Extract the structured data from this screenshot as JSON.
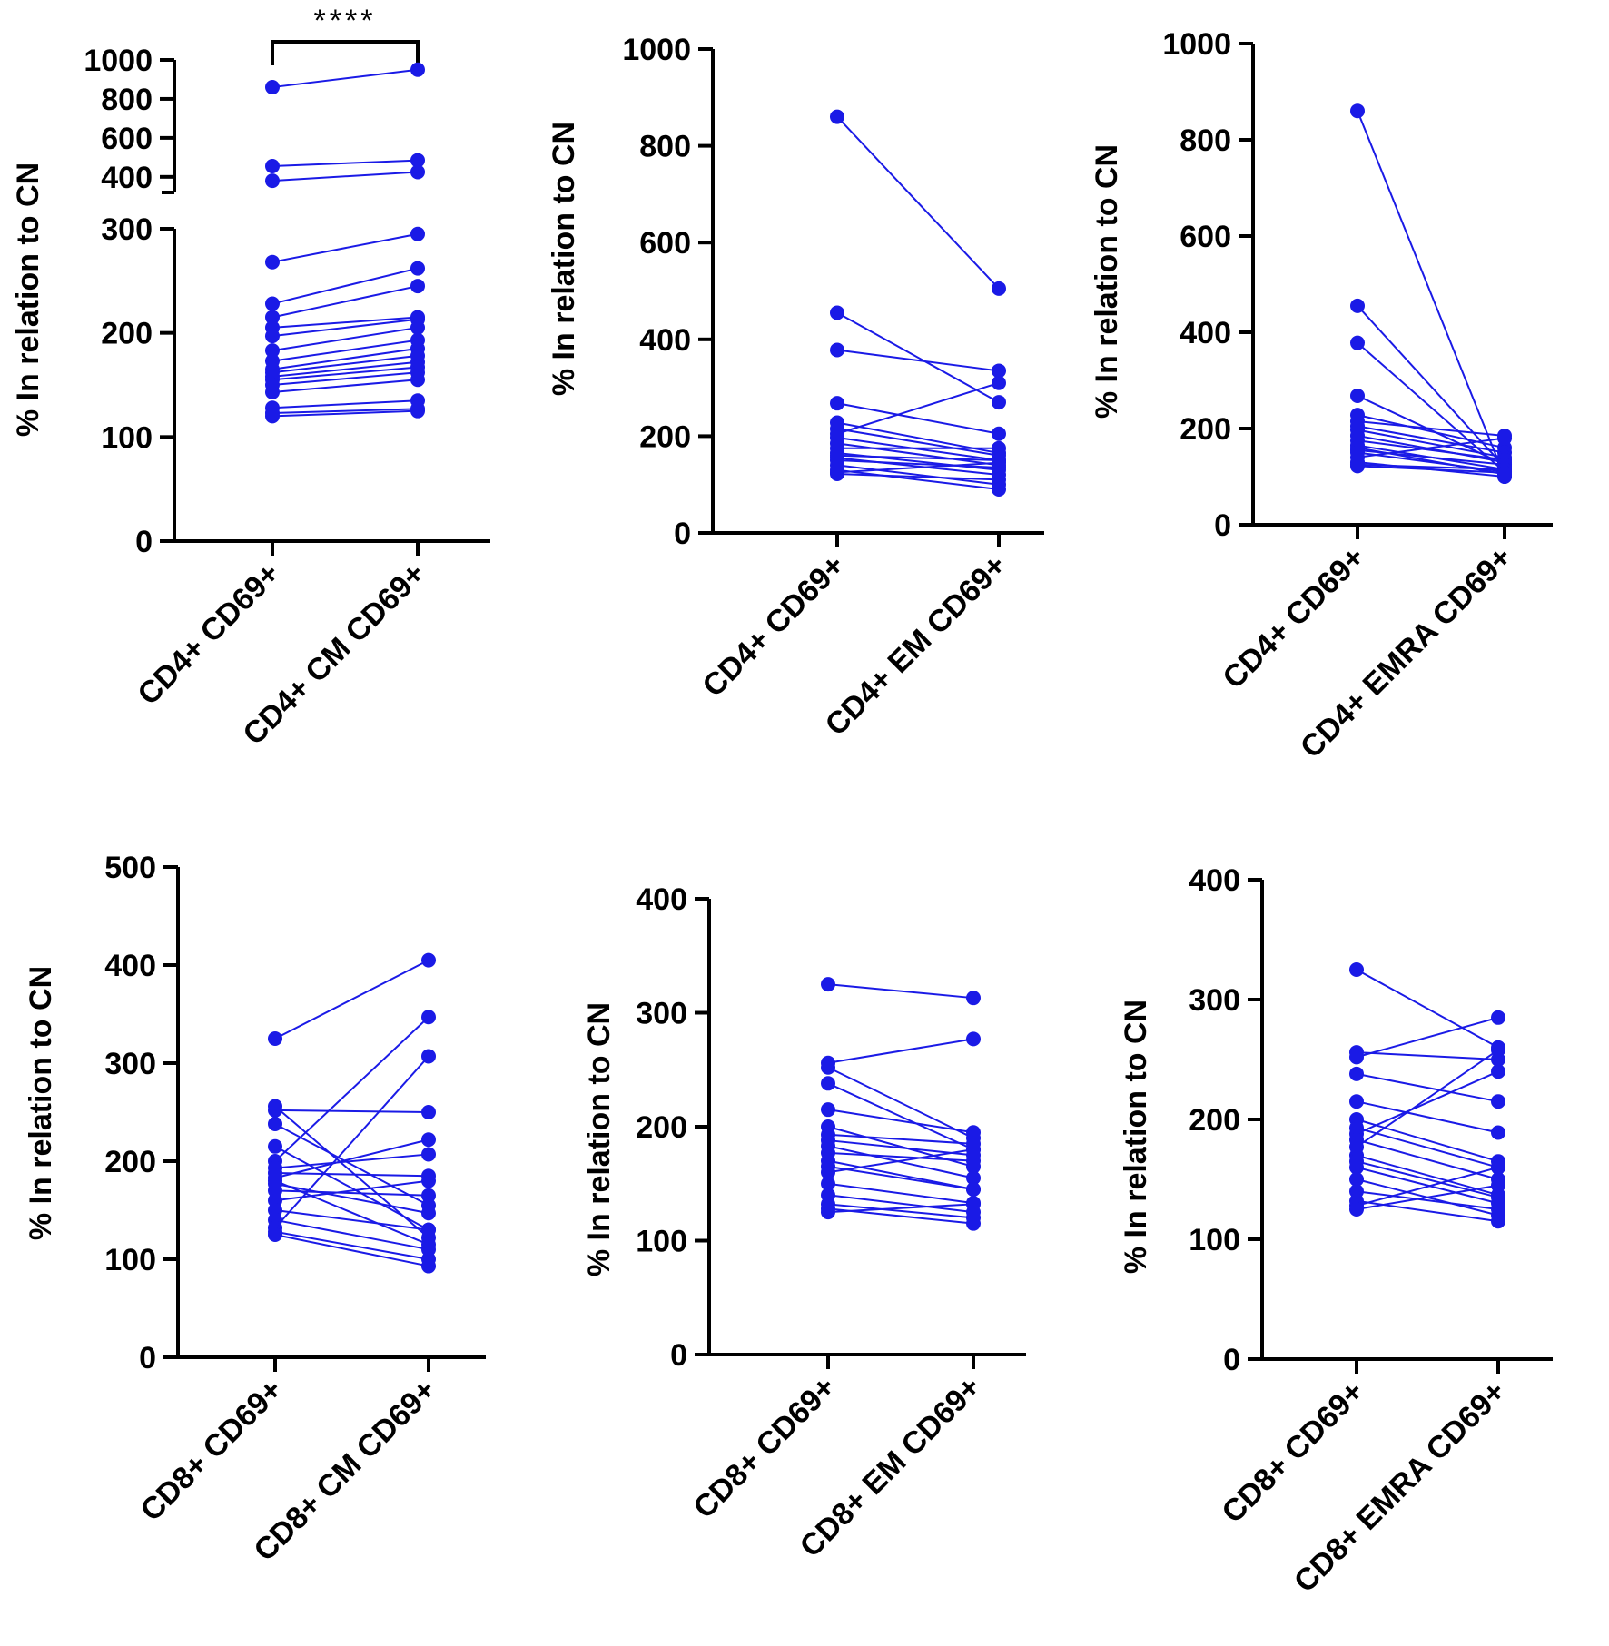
{
  "colors": {
    "series": "#1a1ae6",
    "axis": "#000000"
  },
  "chart_data": [
    {
      "type": "paired-line",
      "title": "",
      "ylabel": "% In relation to CN",
      "categories": [
        "CD4+ CD69+",
        "CD4+ CM CD69+"
      ],
      "ylim": [
        0,
        1000
      ],
      "yaxis_break": {
        "lower_max": 300,
        "upper_min": 320,
        "upper_max": 1000
      },
      "yticks": [
        0,
        100,
        200,
        300,
        400,
        600,
        800,
        1000
      ],
      "significance": "****",
      "pairs": [
        [
          860,
          950
        ],
        [
          455,
          485
        ],
        [
          380,
          425
        ],
        [
          268,
          295
        ],
        [
          228,
          262
        ],
        [
          215,
          245
        ],
        [
          205,
          215
        ],
        [
          197,
          213
        ],
        [
          183,
          205
        ],
        [
          173,
          193
        ],
        [
          165,
          185
        ],
        [
          162,
          178
        ],
        [
          158,
          172
        ],
        [
          155,
          167
        ],
        [
          150,
          162
        ],
        [
          143,
          155
        ],
        [
          128,
          135
        ],
        [
          123,
          127
        ],
        [
          120,
          125
        ]
      ]
    },
    {
      "type": "paired-line",
      "title": "",
      "ylabel": "% In relation to CN",
      "categories": [
        "CD4+ CD69+",
        "CD4+ EM CD69+"
      ],
      "ylim": [
        0,
        1000
      ],
      "yticks": [
        0,
        200,
        400,
        600,
        800,
        1000
      ],
      "pairs": [
        [
          860,
          505
        ],
        [
          455,
          270
        ],
        [
          378,
          335
        ],
        [
          268,
          205
        ],
        [
          228,
          165
        ],
        [
          215,
          160
        ],
        [
          205,
          310
        ],
        [
          197,
          150
        ],
        [
          185,
          140
        ],
        [
          175,
          175
        ],
        [
          165,
          130
        ],
        [
          160,
          150
        ],
        [
          155,
          120
        ],
        [
          150,
          135
        ],
        [
          140,
          100
        ],
        [
          130,
          90
        ],
        [
          125,
          145
        ],
        [
          122,
          110
        ]
      ]
    },
    {
      "type": "paired-line",
      "title": "",
      "ylabel": "% In relation to CN",
      "categories": [
        "CD4+ CD69+",
        "CD4+ EMRA CD69+"
      ],
      "ylim": [
        0,
        1000
      ],
      "yticks": [
        0,
        200,
        400,
        600,
        800,
        1000
      ],
      "pairs": [
        [
          860,
          100
        ],
        [
          455,
          120
        ],
        [
          378,
          110
        ],
        [
          268,
          125
        ],
        [
          228,
          160
        ],
        [
          215,
          185
        ],
        [
          205,
          150
        ],
        [
          197,
          140
        ],
        [
          185,
          130
        ],
        [
          175,
          135
        ],
        [
          165,
          115
        ],
        [
          160,
          105
        ],
        [
          155,
          125
        ],
        [
          150,
          110
        ],
        [
          140,
          180
        ],
        [
          130,
          100
        ],
        [
          125,
          115
        ],
        [
          122,
          108
        ]
      ]
    },
    {
      "type": "paired-line",
      "title": "",
      "ylabel": "% In relation to CN",
      "categories": [
        "CD8+ CD69+",
        "CD8+ CM CD69+"
      ],
      "ylim": [
        0,
        500
      ],
      "yticks": [
        0,
        100,
        200,
        300,
        400,
        500
      ],
      "pairs": [
        [
          325,
          405
        ],
        [
          256,
          122
        ],
        [
          252,
          250
        ],
        [
          238,
          155
        ],
        [
          215,
          130
        ],
        [
          200,
          347
        ],
        [
          193,
          207
        ],
        [
          188,
          185
        ],
        [
          183,
          222
        ],
        [
          177,
          147
        ],
        [
          170,
          165
        ],
        [
          160,
          180
        ],
        [
          150,
          130
        ],
        [
          140,
          110
        ],
        [
          132,
          307
        ],
        [
          128,
          100
        ],
        [
          125,
          93
        ],
        [
          180,
          115
        ]
      ]
    },
    {
      "type": "paired-line",
      "title": "",
      "ylabel": "% In relation to CN",
      "categories": [
        "CD8+ CD69+",
        "CD8+ EM CD69+"
      ],
      "ylim": [
        0,
        400
      ],
      "yticks": [
        0,
        100,
        200,
        300,
        400
      ],
      "pairs": [
        [
          325,
          313
        ],
        [
          256,
          277
        ],
        [
          252,
          190
        ],
        [
          238,
          180
        ],
        [
          215,
          195
        ],
        [
          200,
          165
        ],
        [
          193,
          185
        ],
        [
          188,
          175
        ],
        [
          183,
          155
        ],
        [
          177,
          170
        ],
        [
          170,
          145
        ],
        [
          160,
          180
        ],
        [
          150,
          133
        ],
        [
          140,
          125
        ],
        [
          132,
          120
        ],
        [
          128,
          115
        ],
        [
          125,
          132
        ],
        [
          165,
          145
        ]
      ]
    },
    {
      "type": "paired-line",
      "title": "",
      "ylabel": "% In relation to CN",
      "categories": [
        "CD8+ CD69+",
        "CD8+ EMRA CD69+"
      ],
      "ylim": [
        0,
        400
      ],
      "yticks": [
        0,
        100,
        200,
        300,
        400
      ],
      "pairs": [
        [
          325,
          260
        ],
        [
          256,
          250
        ],
        [
          252,
          285
        ],
        [
          238,
          215
        ],
        [
          215,
          189
        ],
        [
          200,
          165
        ],
        [
          193,
          160
        ],
        [
          188,
          240
        ],
        [
          183,
          150
        ],
        [
          177,
          258
        ],
        [
          170,
          137
        ],
        [
          160,
          130
        ],
        [
          150,
          120
        ],
        [
          140,
          125
        ],
        [
          132,
          115
        ],
        [
          128,
          160
        ],
        [
          125,
          145
        ],
        [
          165,
          135
        ]
      ]
    }
  ]
}
